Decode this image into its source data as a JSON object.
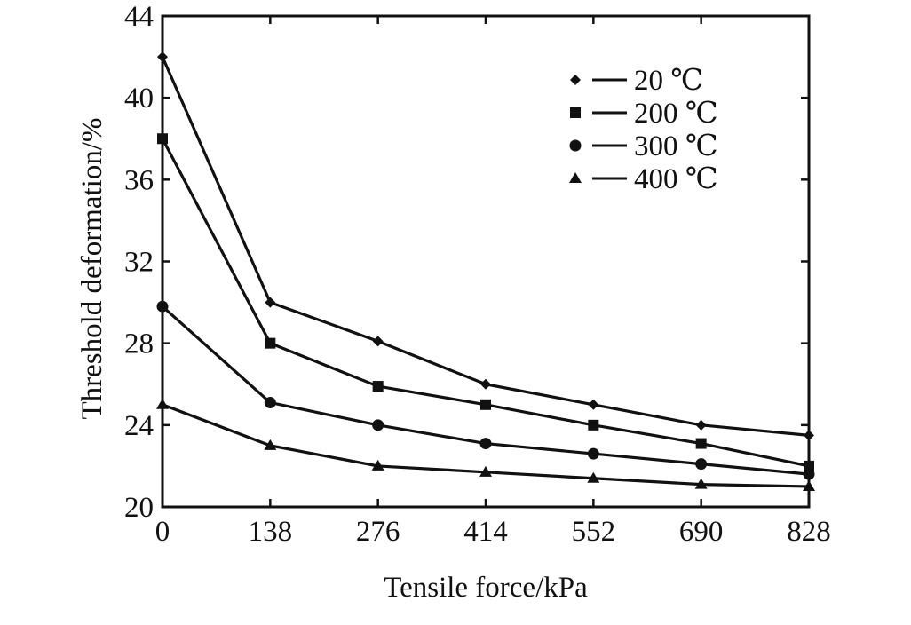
{
  "chart_data": {
    "type": "line",
    "xlabel": "Tensile force/kPa",
    "ylabel": "Threshold deformation/%",
    "xlim": [
      0,
      828
    ],
    "ylim": [
      20,
      44
    ],
    "x_ticks": [
      "0",
      "138",
      "276",
      "414",
      "552",
      "690",
      "828"
    ],
    "y_ticks": [
      "20",
      "24",
      "28",
      "32",
      "36",
      "40",
      "44"
    ],
    "x": [
      0,
      138,
      276,
      414,
      552,
      690,
      828
    ],
    "legend_position": "top-right",
    "grid": false,
    "series": [
      {
        "name": "20 ℃",
        "marker": "diamond",
        "values": [
          42.0,
          30.0,
          28.1,
          26.0,
          25.0,
          24.0,
          23.5
        ]
      },
      {
        "name": "200 ℃",
        "marker": "square",
        "values": [
          38.0,
          28.0,
          25.9,
          25.0,
          24.0,
          23.1,
          22.0
        ]
      },
      {
        "name": "300 ℃",
        "marker": "circle",
        "values": [
          29.8,
          25.1,
          24.0,
          23.1,
          22.6,
          22.1,
          21.6
        ]
      },
      {
        "name": "400 ℃",
        "marker": "triangle",
        "values": [
          25.0,
          23.0,
          22.0,
          21.7,
          21.4,
          21.1,
          21.0
        ]
      }
    ]
  }
}
